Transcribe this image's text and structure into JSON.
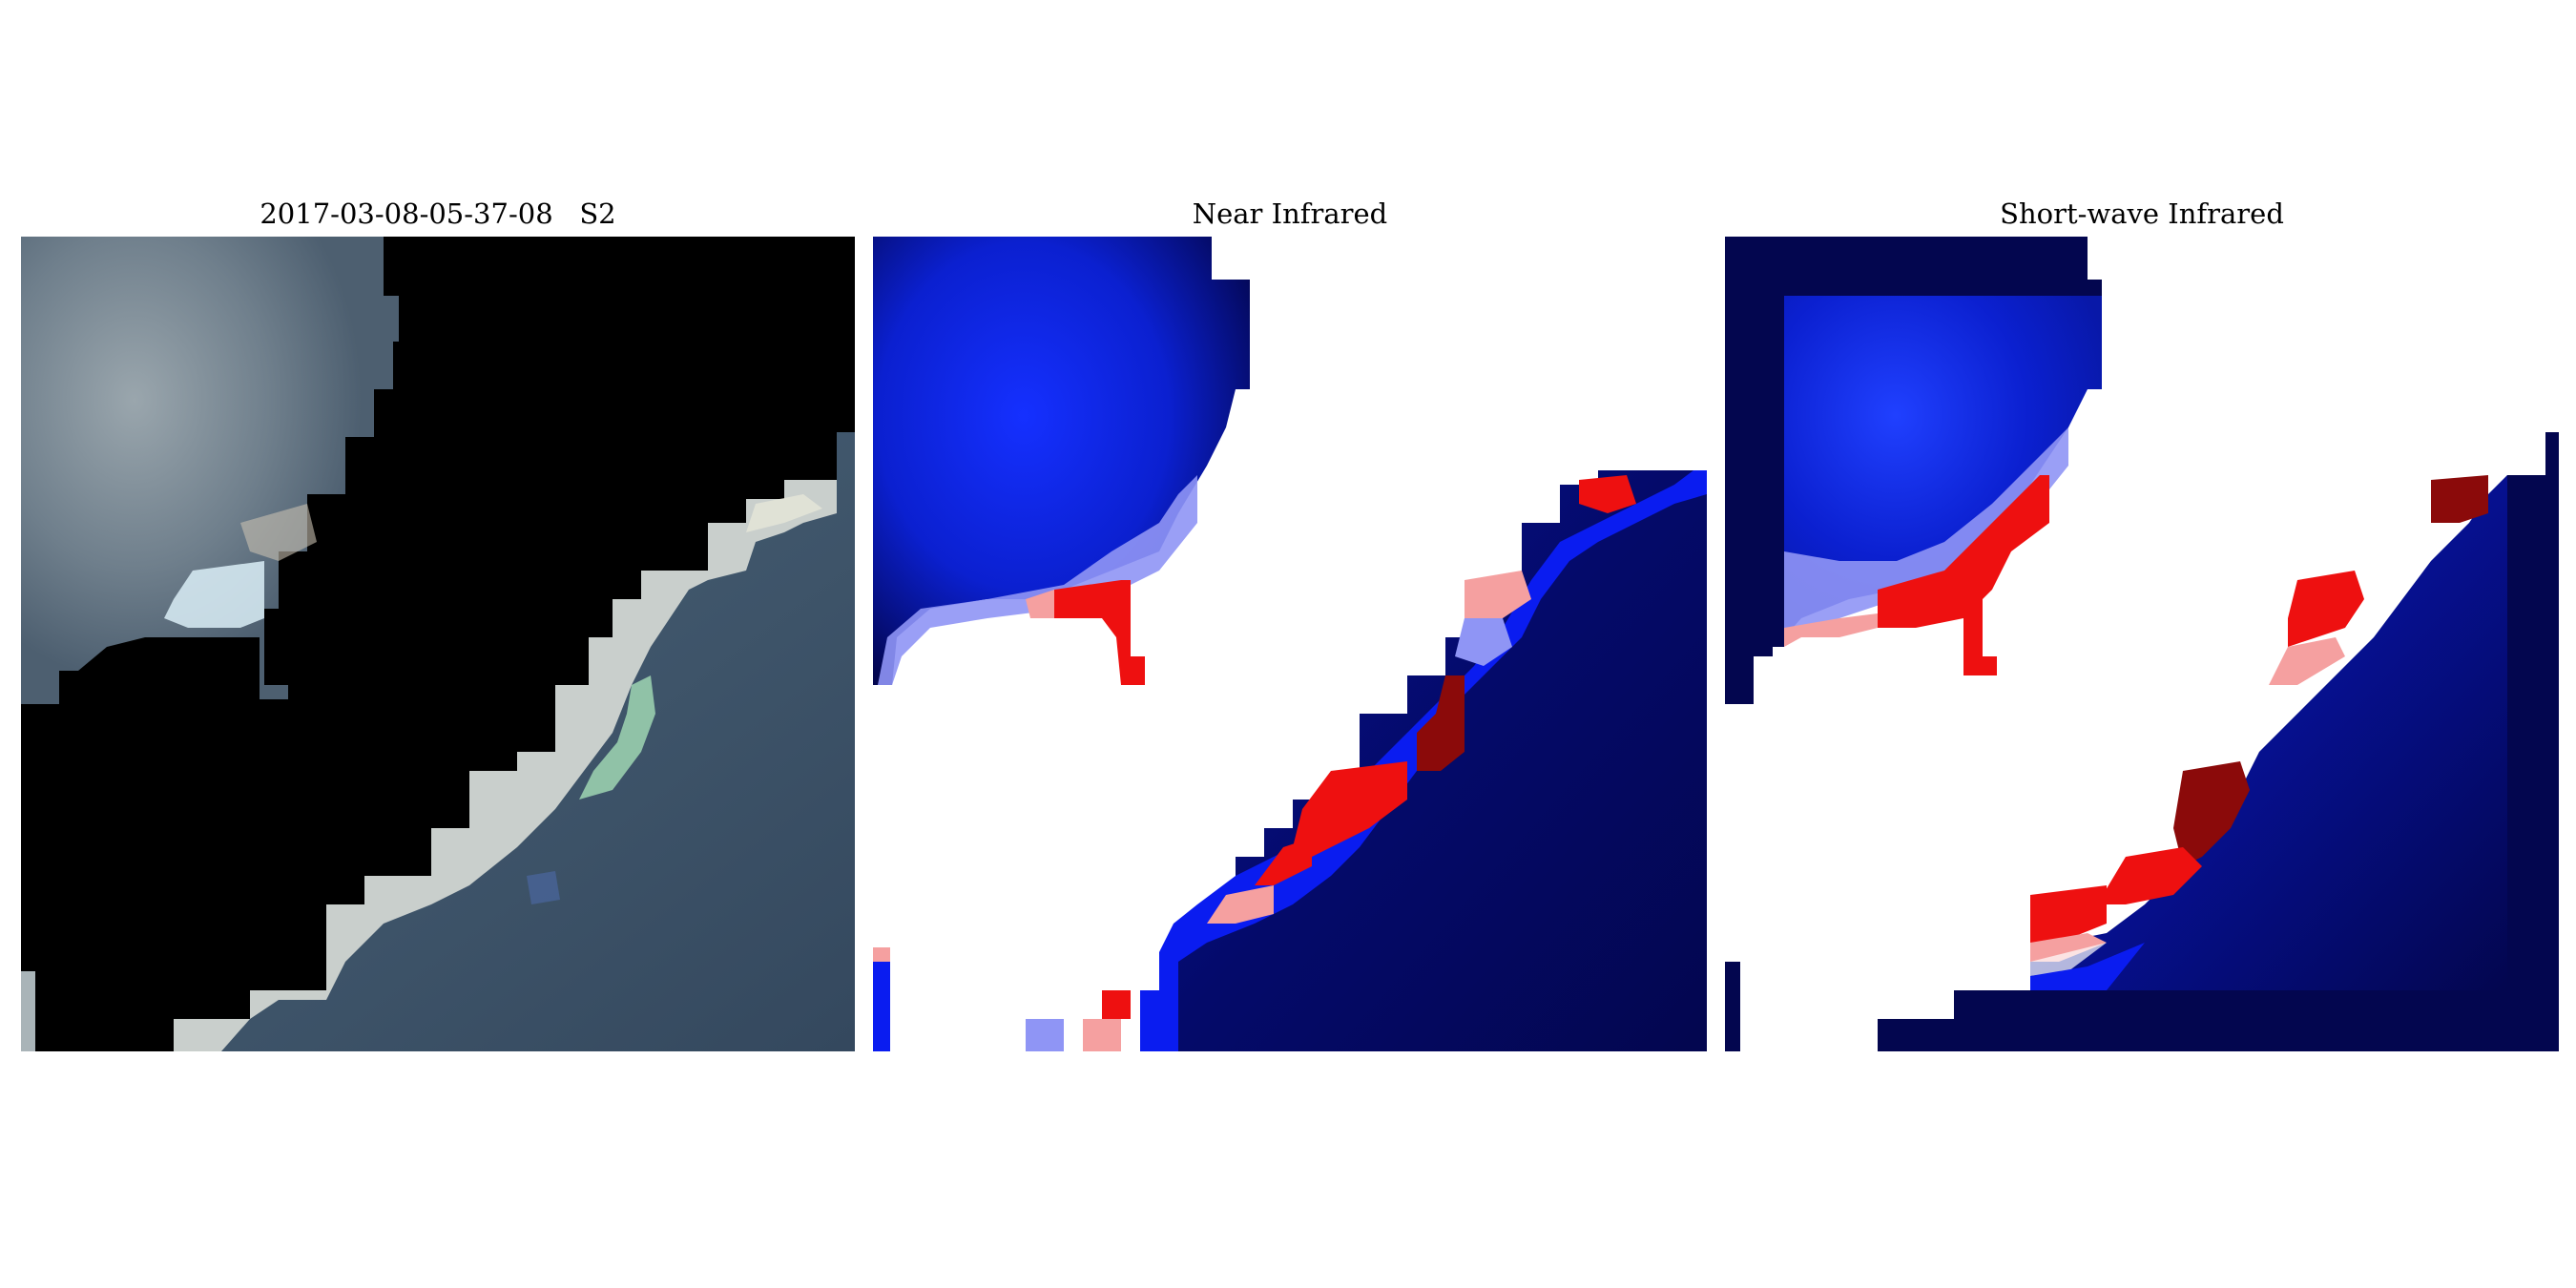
{
  "panels": [
    {
      "id": "rgb",
      "title": "2017-03-08-05-37-08   S2"
    },
    {
      "id": "nir",
      "title": "Near Infrared"
    },
    {
      "id": "swir",
      "title": "Short-wave Infrared"
    }
  ],
  "colors": {
    "background": "#ffffff",
    "mask": "#000000",
    "deep_blue": "#03064f",
    "blue": "#0a1cf0",
    "light_blue": "#8f95f5",
    "white": "#ffffff",
    "light_red": "#f5a0a0",
    "red": "#ee1010",
    "dark_red": "#8b0a0a",
    "cloud": "#8d9aa6",
    "sea": "#3a5068",
    "ice": "#c9cfcc",
    "green_ice": "#9fd6b3"
  },
  "colormap": "blue-white-red diverging"
}
